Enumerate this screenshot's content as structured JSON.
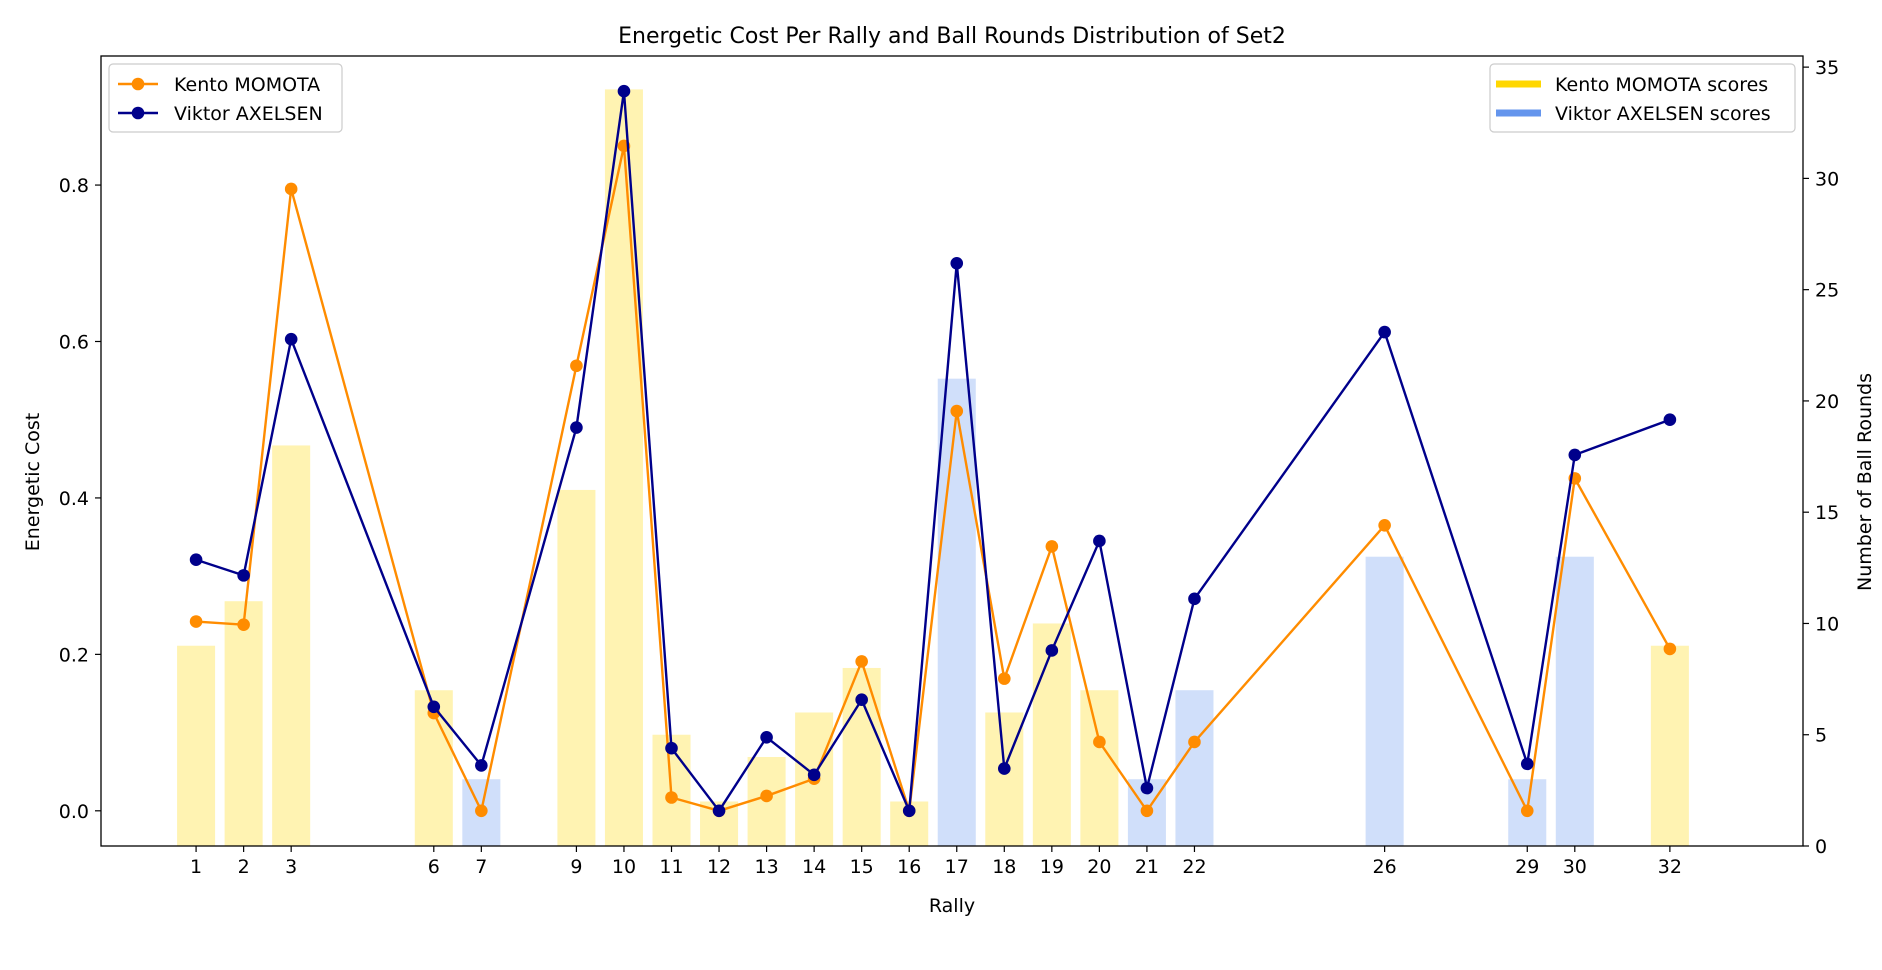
{
  "chart_data": {
    "type": "bar+line",
    "title": "Energetic Cost Per Rally and Ball Rounds Distribution of Set2",
    "xlabel": "Rally",
    "ylabel_left": "Energetic Cost",
    "ylabel_right": "Number of Ball Rounds",
    "ylim_left": [
      -0.045,
      0.965
    ],
    "ylim_right": [
      0,
      35.5
    ],
    "yticks_left": [
      0.0,
      0.2,
      0.4,
      0.6,
      0.8
    ],
    "yticks_right": [
      0,
      5,
      10,
      15,
      20,
      25,
      30,
      35
    ],
    "xlim": [
      -1,
      34.8
    ],
    "grid": false,
    "rallies": [
      1,
      2,
      3,
      6,
      7,
      9,
      10,
      11,
      12,
      13,
      14,
      15,
      16,
      17,
      18,
      19,
      20,
      21,
      22,
      26,
      29,
      30,
      32
    ],
    "line_series": [
      {
        "name": "Kento MOMOTA",
        "color": "#ff8c00",
        "values": [
          0.242,
          0.238,
          0.795,
          0.125,
          0.0,
          0.569,
          0.85,
          0.017,
          0.0,
          0.019,
          0.041,
          0.191,
          0.0,
          0.511,
          0.169,
          0.338,
          0.088,
          0.0,
          0.088,
          0.365,
          0.0,
          0.425,
          0.207
        ]
      },
      {
        "name": "Viktor AXELSEN",
        "color": "#00008b",
        "values": [
          0.321,
          0.301,
          0.603,
          0.133,
          0.058,
          0.49,
          0.92,
          0.08,
          0.0,
          0.094,
          0.046,
          0.142,
          0.0,
          0.7,
          0.054,
          0.205,
          0.345,
          0.029,
          0.271,
          0.612,
          0.06,
          0.455,
          0.5
        ]
      }
    ],
    "bars": {
      "values": [
        9,
        11,
        18,
        7,
        3,
        16,
        34,
        5,
        2,
        4,
        6,
        8,
        2,
        21,
        6,
        10,
        7,
        3,
        7,
        13,
        3,
        13,
        9
      ],
      "winners": [
        "MOMOTA",
        "MOMOTA",
        "MOMOTA",
        "MOMOTA",
        "AXELSEN",
        "MOMOTA",
        "MOMOTA",
        "MOMOTA",
        "MOMOTA",
        "MOMOTA",
        "MOMOTA",
        "MOMOTA",
        "MOMOTA",
        "AXELSEN",
        "MOMOTA",
        "MOMOTA",
        "MOMOTA",
        "AXELSEN",
        "AXELSEN",
        "AXELSEN",
        "AXELSEN",
        "AXELSEN",
        "MOMOTA"
      ],
      "colors": {
        "MOMOTA": "#ffd700",
        "AXELSEN": "#6495ed"
      },
      "opacity": 0.3
    },
    "legend_left": {
      "position": "upper left",
      "entries": [
        "Kento MOMOTA",
        "Viktor AXELSEN"
      ]
    },
    "legend_right": {
      "position": "upper right",
      "entries": [
        "Kento MOMOTA scores",
        "Viktor AXELSEN scores"
      ]
    }
  }
}
